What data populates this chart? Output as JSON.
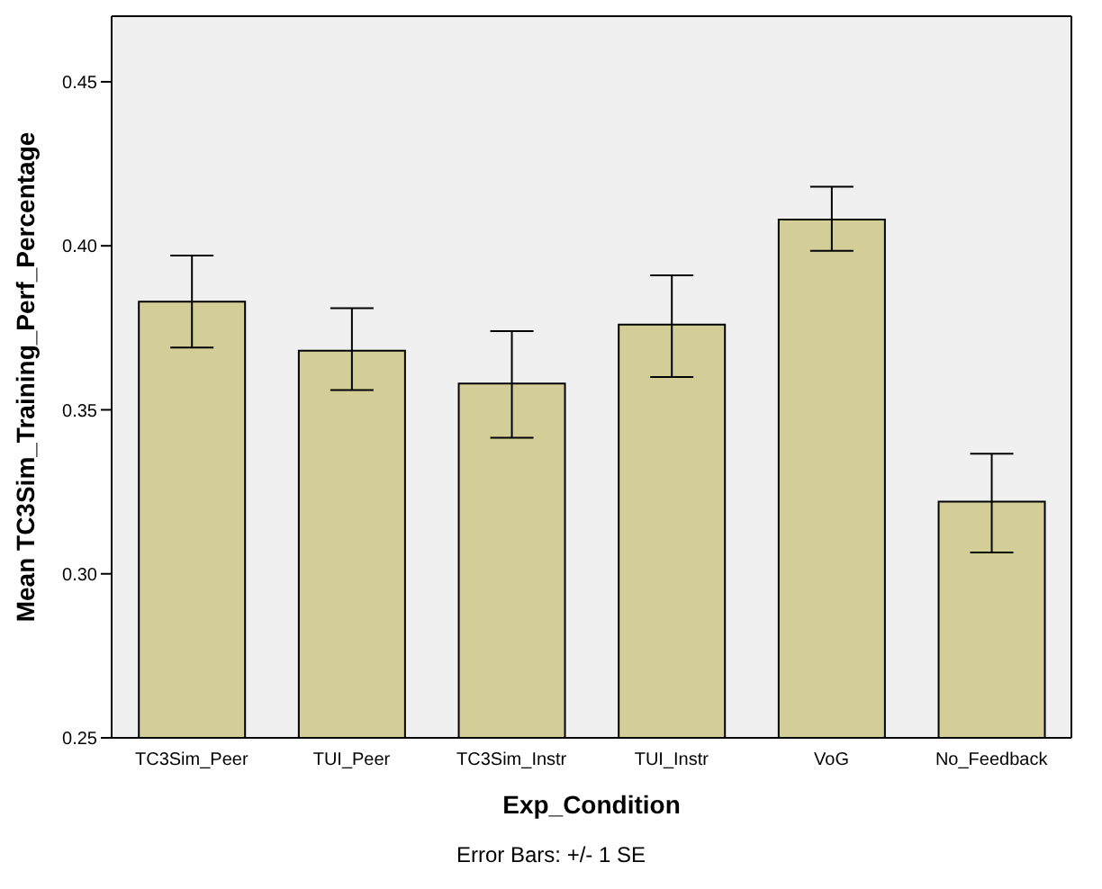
{
  "chart_data": {
    "type": "bar",
    "categories": [
      "TC3Sim_Peer",
      "TUI_Peer",
      "TC3Sim_Instr",
      "TUI_Instr",
      "VoG",
      "No_Feedback"
    ],
    "values": [
      0.383,
      0.368,
      0.358,
      0.376,
      0.408,
      0.322
    ],
    "errors": [
      [
        0.369,
        0.397
      ],
      [
        0.356,
        0.381
      ],
      [
        0.3415,
        0.374
      ],
      [
        0.36,
        0.391
      ],
      [
        0.3985,
        0.418
      ],
      [
        0.3065,
        0.3366
      ]
    ],
    "color": "#d3ce97",
    "xlabel": "Exp_Condition",
    "ylabel": "Mean TC3Sim_Training_Perf_Percentage",
    "ylim": [
      0.25,
      0.47
    ],
    "yticks": [
      {
        "value": 0.25,
        "label": "0.25"
      },
      {
        "value": 0.3,
        "label": "0.30"
      },
      {
        "value": 0.35,
        "label": "0.35"
      },
      {
        "value": 0.4,
        "label": "0.40"
      },
      {
        "value": 0.45,
        "label": "0.45"
      }
    ],
    "annotations": [
      "Error Bars: +/- 1 SE"
    ]
  }
}
